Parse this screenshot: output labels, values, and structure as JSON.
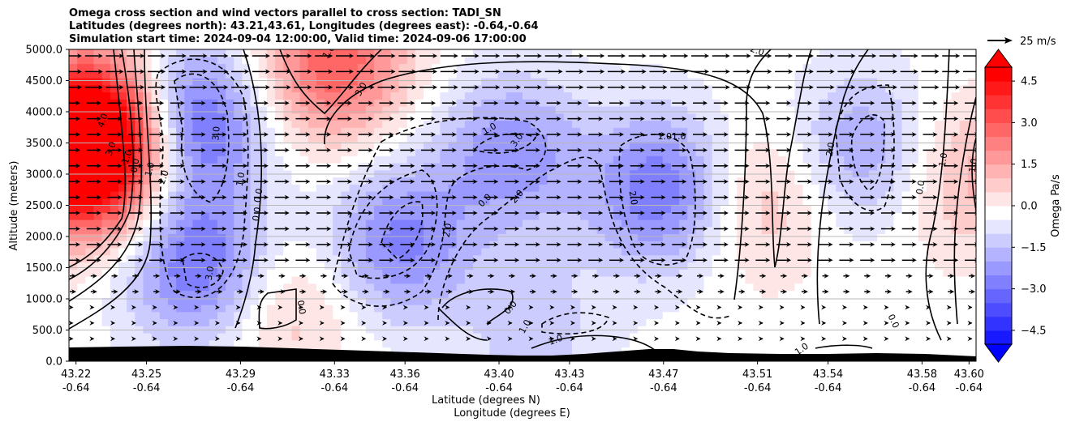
{
  "chart_data": {
    "type": "heatmap",
    "title_lines": [
      "Omega cross section and wind vectors parallel to cross section: TADI_SN",
      "Latitudes (degrees north): 43.21,43.61, Longitudes (degrees east): -0.64,-0.64",
      "Simulation start time: 2024-09-04 12:00:00, Valid time: 2024-09-06 17:00:00"
    ],
    "xlabel": "Latitude (degrees N)",
    "xlabel2": "Longitude (degrees E)",
    "ylabel": "Altitude (meters)",
    "x_ticks": [
      {
        "lat": "43.22",
        "lon": "-0.64"
      },
      {
        "lat": "43.25",
        "lon": "-0.64"
      },
      {
        "lat": "43.29",
        "lon": "-0.64"
      },
      {
        "lat": "43.33",
        "lon": "-0.64"
      },
      {
        "lat": "43.36",
        "lon": "-0.64"
      },
      {
        "lat": "43.40",
        "lon": "-0.64"
      },
      {
        "lat": "43.43",
        "lon": "-0.64"
      },
      {
        "lat": "43.47",
        "lon": "-0.64"
      },
      {
        "lat": "43.51",
        "lon": "-0.64"
      },
      {
        "lat": "43.54",
        "lon": "-0.64"
      },
      {
        "lat": "43.58",
        "lon": "-0.64"
      },
      {
        "lat": "43.60",
        "lon": "-0.64"
      }
    ],
    "y_ticks": [
      "0.0",
      "500.0",
      "1000.0",
      "1500.0",
      "2000.0",
      "2500.0",
      "3000.0",
      "3500.0",
      "4000.0",
      "4500.0",
      "5000.0"
    ],
    "ylim": [
      0,
      5000
    ],
    "grid": "horizontal",
    "colorbar": {
      "label": "Omega Pa/s",
      "ticks": [
        "4.5",
        "3.0",
        "1.5",
        "0.0",
        "−1.5",
        "−3.0",
        "−4.5"
      ],
      "range": [
        -5,
        5
      ],
      "extend": "both",
      "colormap": "bwr"
    },
    "quiver_key": "25 m/s",
    "contour_labels": [
      "4.0",
      "3.0",
      "1.0",
      "0.0",
      "1.0",
      "2.0",
      "3.0",
      "3.0",
      "1.0",
      "0.0",
      "0.0",
      "1.0",
      "3.0",
      "1.0",
      "3.0",
      "2.0",
      "2.0",
      "1.01.0",
      "2.0",
      "0.0",
      "1.0",
      "1.0",
      "2.0",
      "2.0",
      "0.0",
      "1.0",
      "0.0",
      "1.0",
      "1.0",
      "0.0",
      "0.0"
    ],
    "omega_centers": [
      {
        "lat": 43.222,
        "alt": 3300,
        "omega": 5.0
      },
      {
        "lat": 43.232,
        "alt": 3700,
        "omega": 4.5
      },
      {
        "lat": 43.267,
        "alt": 3850,
        "omega": -3.6
      },
      {
        "lat": 43.272,
        "alt": 1550,
        "omega": -2.8
      },
      {
        "lat": 43.33,
        "alt": 4800,
        "omega": 3.2
      },
      {
        "lat": 43.357,
        "alt": 1900,
        "omega": -2.4
      },
      {
        "lat": 43.405,
        "alt": 3350,
        "omega": -2.1
      },
      {
        "lat": 43.47,
        "alt": 2750,
        "omega": -2.8
      },
      {
        "lat": 43.51,
        "alt": 2600,
        "omega": 1.4
      },
      {
        "lat": 43.555,
        "alt": 3400,
        "omega": -1.8
      },
      {
        "lat": 43.6,
        "alt": 3000,
        "omega": 1.5
      },
      {
        "lat": 43.31,
        "alt": 850,
        "omega": 1.2
      },
      {
        "lat": 43.415,
        "alt": 500,
        "omega": -1.0
      }
    ]
  }
}
